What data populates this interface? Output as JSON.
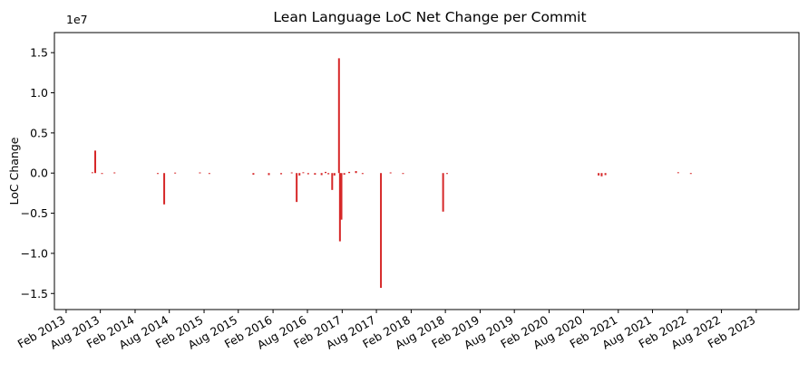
{
  "chart_data": {
    "type": "bar",
    "title": "Lean Language LoC Net Change per Commit",
    "xlabel": "",
    "ylabel": "LoC Change",
    "y_offset_label": "1e7",
    "y_scale": 10000000,
    "ylim": [
      -17000000,
      17500000
    ],
    "xlim": [
      "2012-12-01",
      "2023-09-15"
    ],
    "grid": false,
    "legend": "none",
    "bar_color": "#d62728",
    "y_ticks": [
      -15000000,
      -10000000,
      -5000000,
      0,
      5000000,
      10000000,
      15000000
    ],
    "y_tick_labels": [
      "−1.5",
      "−1.0",
      "−0.5",
      "0.0",
      "0.5",
      "1.0",
      "1.5"
    ],
    "x_ticks": [
      {
        "date": "2013-02-01",
        "label": "Feb 2013"
      },
      {
        "date": "2013-08-01",
        "label": "Aug 2013"
      },
      {
        "date": "2014-02-01",
        "label": "Feb 2014"
      },
      {
        "date": "2014-08-01",
        "label": "Aug 2014"
      },
      {
        "date": "2015-02-01",
        "label": "Feb 2015"
      },
      {
        "date": "2015-08-01",
        "label": "Aug 2015"
      },
      {
        "date": "2016-02-01",
        "label": "Feb 2016"
      },
      {
        "date": "2016-08-01",
        "label": "Aug 2016"
      },
      {
        "date": "2017-02-01",
        "label": "Feb 2017"
      },
      {
        "date": "2017-08-01",
        "label": "Aug 2017"
      },
      {
        "date": "2018-02-01",
        "label": "Feb 2018"
      },
      {
        "date": "2018-08-01",
        "label": "Aug 2018"
      },
      {
        "date": "2019-02-01",
        "label": "Feb 2019"
      },
      {
        "date": "2019-08-01",
        "label": "Aug 2019"
      },
      {
        "date": "2020-02-01",
        "label": "Feb 2020"
      },
      {
        "date": "2020-08-01",
        "label": "Aug 2020"
      },
      {
        "date": "2021-02-01",
        "label": "Feb 2021"
      },
      {
        "date": "2021-08-01",
        "label": "Aug 2021"
      },
      {
        "date": "2022-02-01",
        "label": "Feb 2022"
      },
      {
        "date": "2022-08-01",
        "label": "Aug 2022"
      },
      {
        "date": "2023-02-01",
        "label": "Feb 2023"
      }
    ],
    "points": [
      {
        "date": "2013-06-20",
        "value": 100000
      },
      {
        "date": "2013-07-05",
        "value": 2800000
      },
      {
        "date": "2013-08-10",
        "value": -100000
      },
      {
        "date": "2013-10-15",
        "value": 80000
      },
      {
        "date": "2014-06-01",
        "value": -100000
      },
      {
        "date": "2014-07-05",
        "value": -3900000
      },
      {
        "date": "2014-09-01",
        "value": 60000
      },
      {
        "date": "2015-01-10",
        "value": 80000
      },
      {
        "date": "2015-03-01",
        "value": -80000
      },
      {
        "date": "2015-10-20",
        "value": -200000
      },
      {
        "date": "2016-01-10",
        "value": -250000
      },
      {
        "date": "2016-03-15",
        "value": -150000
      },
      {
        "date": "2016-05-10",
        "value": 80000
      },
      {
        "date": "2016-06-05",
        "value": -3600000
      },
      {
        "date": "2016-06-20",
        "value": -300000
      },
      {
        "date": "2016-07-10",
        "value": 100000
      },
      {
        "date": "2016-08-05",
        "value": -150000
      },
      {
        "date": "2016-09-10",
        "value": -200000
      },
      {
        "date": "2016-10-15",
        "value": -250000
      },
      {
        "date": "2016-11-05",
        "value": 150000
      },
      {
        "date": "2016-11-20",
        "value": -150000
      },
      {
        "date": "2016-12-10",
        "value": -2100000
      },
      {
        "date": "2016-12-22",
        "value": -300000
      },
      {
        "date": "2017-01-15",
        "value": 14300000
      },
      {
        "date": "2017-01-20",
        "value": -8500000
      },
      {
        "date": "2017-01-28",
        "value": -5800000
      },
      {
        "date": "2017-02-12",
        "value": -200000
      },
      {
        "date": "2017-03-10",
        "value": 150000
      },
      {
        "date": "2017-04-15",
        "value": 250000
      },
      {
        "date": "2017-05-20",
        "value": -120000
      },
      {
        "date": "2017-08-25",
        "value": -14300000
      },
      {
        "date": "2017-10-15",
        "value": 80000
      },
      {
        "date": "2017-12-20",
        "value": -100000
      },
      {
        "date": "2018-07-20",
        "value": -4800000
      },
      {
        "date": "2018-08-10",
        "value": -100000
      },
      {
        "date": "2020-10-20",
        "value": -300000
      },
      {
        "date": "2020-11-05",
        "value": -400000
      },
      {
        "date": "2020-11-25",
        "value": -250000
      },
      {
        "date": "2021-12-15",
        "value": 100000
      },
      {
        "date": "2022-02-20",
        "value": -100000
      }
    ]
  }
}
